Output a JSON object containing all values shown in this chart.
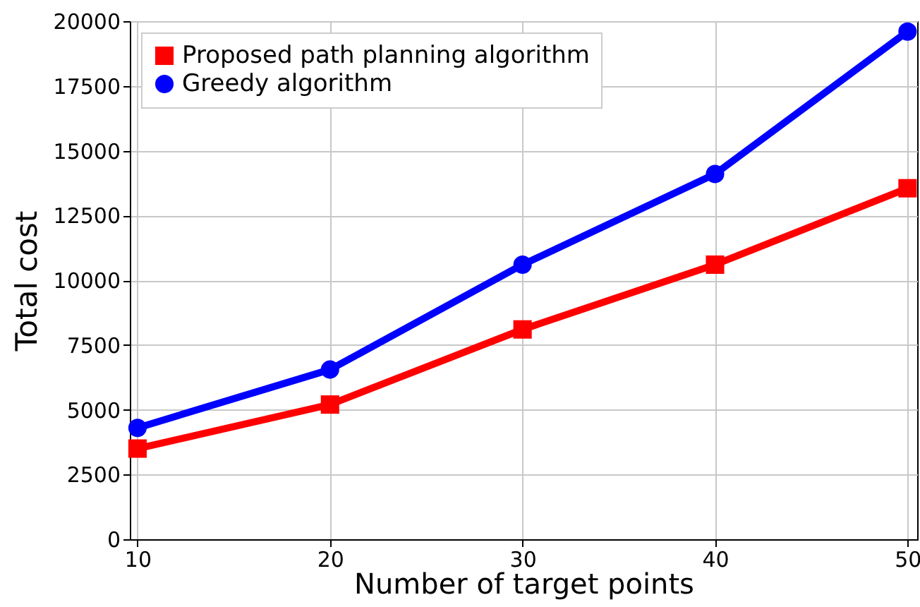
{
  "chart_data": {
    "type": "line",
    "xlabel": "Number of target points",
    "ylabel": "Total cost",
    "x": [
      10,
      20,
      30,
      40,
      50
    ],
    "series": [
      {
        "name": "Proposed path planning algorithm",
        "color": "#ff0000",
        "marker": "square",
        "values": [
          3500,
          5200,
          8100,
          10600,
          13550
        ]
      },
      {
        "name": "Greedy algorithm",
        "color": "#0000ff",
        "marker": "circle",
        "values": [
          4300,
          6550,
          10600,
          14100,
          19600
        ]
      }
    ],
    "xlim": [
      9.6,
      50.5
    ],
    "xticks": [
      10,
      20,
      30,
      40,
      50
    ],
    "ylim": [
      0,
      20000
    ],
    "yticks": [
      0,
      2500,
      5000,
      7500,
      10000,
      12500,
      15000,
      17500,
      20000
    ],
    "grid": true,
    "legend": "top left"
  }
}
